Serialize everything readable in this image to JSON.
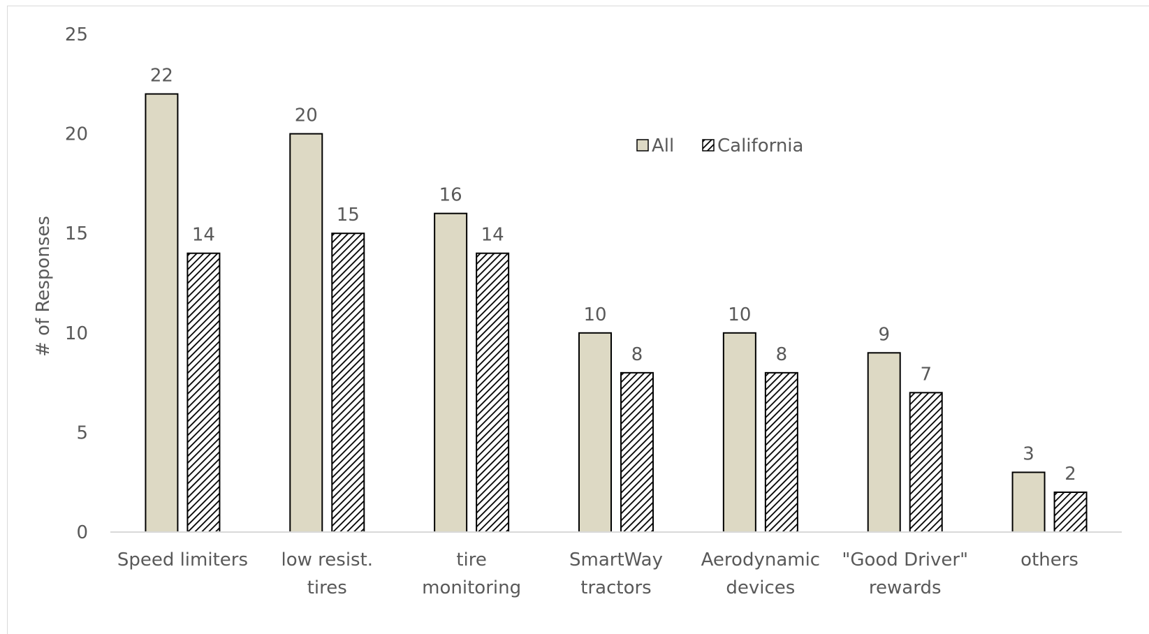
{
  "chart_data": {
    "type": "bar",
    "title": "",
    "xlabel": "",
    "ylabel": "# of Responses",
    "ylim": [
      0,
      25
    ],
    "yticks": [
      0,
      5,
      10,
      15,
      20,
      25
    ],
    "grid": false,
    "legend_position": "top-center",
    "categories": [
      [
        "Speed limiters"
      ],
      [
        "low resist.",
        "tires"
      ],
      [
        "tire",
        "monitoring"
      ],
      [
        "SmartWay",
        "tractors"
      ],
      [
        "Aerodynamic",
        "devices"
      ],
      [
        "\"Good Driver\"",
        "rewards"
      ],
      [
        "others"
      ]
    ],
    "series": [
      {
        "name": "All",
        "values": [
          22,
          20,
          16,
          10,
          10,
          9,
          3
        ],
        "fill": "#ddd9c4",
        "pattern": "solid"
      },
      {
        "name": "California",
        "values": [
          14,
          15,
          14,
          8,
          8,
          7,
          2
        ],
        "fill": "#ffffff",
        "pattern": "diagonal-hatch"
      }
    ],
    "colors": {
      "bar_stroke": "#000000",
      "axis_line": "#d9d9d9",
      "text": "#595959"
    }
  }
}
